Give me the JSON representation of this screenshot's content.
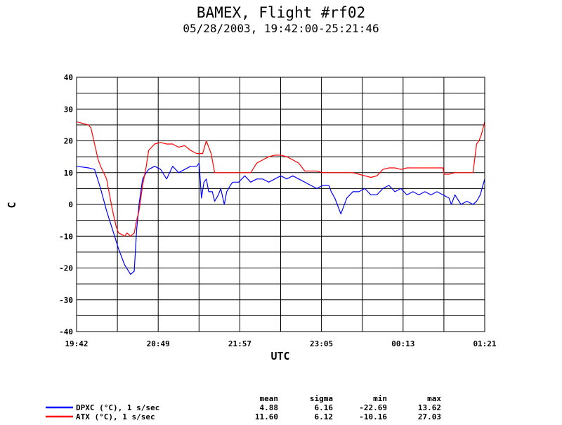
{
  "chart_data": {
    "type": "line",
    "title": "BAMEX, Flight #rf02",
    "subtitle": "05/28/2003, 19:42:00-25:21:46",
    "xlabel": "UTC",
    "ylabel": "C",
    "xlim": [
      0,
      339.77
    ],
    "ylim": [
      -40,
      40
    ],
    "yticks": [
      -40,
      -30,
      -20,
      -10,
      0,
      10,
      20,
      30,
      40
    ],
    "x_tick_labels": [
      "19:42",
      "20:49",
      "21:57",
      "23:05",
      "00:13",
      "01:21"
    ],
    "x_tick_values": [
      0,
      67.95,
      135.91,
      203.86,
      271.82,
      339.77
    ],
    "grid": true,
    "stats_headers": [
      "mean",
      "sigma",
      "min",
      "max"
    ],
    "series": [
      {
        "name": "DPXC (°C), 1 s/sec",
        "color": "#0000ff",
        "stats": [
          "4.88",
          "6.16",
          "-22.69",
          "13.62"
        ],
        "x": [
          0,
          10,
          15,
          20,
          25,
          30,
          35,
          40,
          45,
          48,
          50,
          52,
          55,
          58,
          60,
          65,
          70,
          75,
          80,
          85,
          90,
          95,
          100,
          102,
          104,
          106,
          108,
          110,
          113,
          115,
          118,
          120,
          123,
          125,
          128,
          130,
          135,
          140,
          145,
          150,
          155,
          160,
          165,
          170,
          175,
          180,
          185,
          190,
          195,
          200,
          205,
          210,
          212,
          215,
          218,
          220,
          225,
          230,
          235,
          240,
          245,
          250,
          255,
          260,
          265,
          270,
          275,
          280,
          285,
          290,
          295,
          300,
          305,
          310,
          312,
          315,
          320,
          325,
          330,
          333,
          336,
          339.77
        ],
        "y": [
          12,
          11.5,
          11,
          5,
          -2,
          -8,
          -14,
          -19,
          -22,
          -21,
          -8,
          0,
          8,
          10,
          11,
          12,
          11,
          8,
          12,
          10,
          11,
          12,
          12,
          13,
          2,
          7,
          8,
          4,
          4,
          1,
          3,
          5,
          0,
          4,
          6,
          7,
          7,
          9,
          7,
          8,
          8,
          7,
          8,
          9,
          8,
          9,
          8,
          7,
          6,
          5,
          6,
          6,
          4,
          2,
          -1,
          -3,
          2,
          4,
          4,
          5,
          3,
          3,
          5,
          6,
          4,
          5,
          3,
          4,
          3,
          4,
          3,
          4,
          3,
          2,
          0,
          3,
          0,
          1,
          0,
          1,
          3,
          8
        ]
      },
      {
        "name": "ATX (°C), 1 s/sec",
        "color": "#ff0000",
        "stats": [
          "11.60",
          "6.12",
          "-10.16",
          "27.03"
        ],
        "x": [
          0,
          5,
          10,
          12,
          15,
          18,
          20,
          25,
          30,
          33,
          35,
          38,
          40,
          42,
          45,
          48,
          50,
          52,
          55,
          58,
          60,
          65,
          70,
          75,
          80,
          85,
          90,
          95,
          100,
          105,
          108,
          110,
          112,
          115,
          120,
          125,
          130,
          135,
          140,
          145,
          150,
          155,
          160,
          165,
          170,
          175,
          180,
          185,
          190,
          195,
          200,
          205,
          210,
          215,
          220,
          225,
          230,
          235,
          240,
          245,
          250,
          255,
          260,
          265,
          270,
          275,
          280,
          285,
          290,
          295,
          300,
          305,
          306,
          310,
          315,
          320,
          325,
          330,
          333,
          335,
          337,
          339.77
        ],
        "y": [
          26,
          25.5,
          25,
          24,
          19,
          14,
          12,
          8,
          -2,
          -7,
          -9,
          -9.5,
          -10,
          -9,
          -10,
          -9,
          -5,
          -2,
          6,
          12,
          17,
          19,
          19.5,
          19,
          19,
          18,
          18.5,
          17,
          16,
          16,
          20,
          18,
          16,
          10,
          10,
          10,
          10,
          10,
          10,
          10,
          13,
          14,
          15,
          15.5,
          15.5,
          15,
          14,
          13,
          10.5,
          10.5,
          10.5,
          10,
          10,
          10,
          10,
          10,
          10,
          9.5,
          9,
          8.5,
          9,
          11,
          11.5,
          11.5,
          11,
          11.5,
          11.5,
          11.5,
          11.5,
          11.5,
          11.5,
          11.5,
          9.5,
          9.5,
          10,
          10,
          10,
          10,
          19,
          20,
          22,
          26
        ]
      }
    ]
  }
}
